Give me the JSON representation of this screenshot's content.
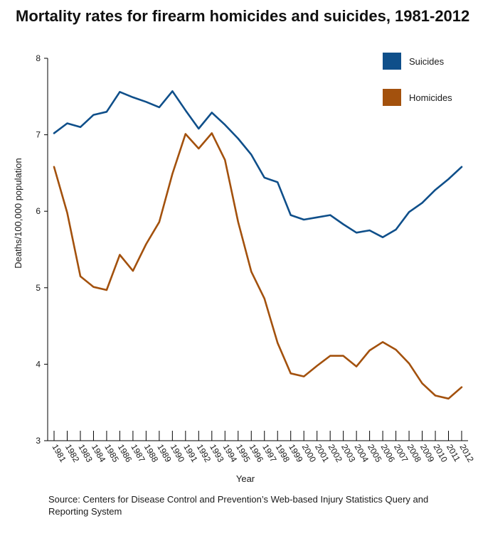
{
  "title": "Mortality rates for firearm homicides and suicides, 1981-2012",
  "source": "Source: Centers for Disease Control and Prevention’s Web-based Injury Statistics Query and Reporting System",
  "chart_data": {
    "type": "line",
    "title": "Mortality rates for firearm homicides and suicides, 1981-2012",
    "xlabel": "Year",
    "ylabel": "Deaths/100,000 population",
    "ylim": [
      3,
      8
    ],
    "yticks": [
      "3",
      "4",
      "5",
      "6",
      "7",
      "8"
    ],
    "grid": false,
    "legend_position": "top-right",
    "categories": [
      "1981",
      "1982",
      "1983",
      "1984",
      "1985",
      "1986",
      "1987",
      "1988",
      "1989",
      "1990",
      "1991",
      "1992",
      "1993",
      "1994",
      "1995",
      "1996",
      "1997",
      "1998",
      "1999",
      "2000",
      "2001",
      "2002",
      "2003",
      "2004",
      "2005",
      "2006",
      "2007",
      "2008",
      "2009",
      "2010",
      "2011",
      "2012"
    ],
    "series": [
      {
        "name": "Suicides",
        "color": "#0f4f8a",
        "values": [
          7.02,
          7.15,
          7.1,
          7.26,
          7.3,
          7.56,
          7.49,
          7.43,
          7.36,
          7.57,
          7.32,
          7.08,
          7.29,
          7.13,
          6.95,
          6.74,
          6.44,
          6.38,
          5.95,
          5.89,
          5.92,
          5.95,
          5.83,
          5.72,
          5.75,
          5.66,
          5.76,
          5.99,
          6.11,
          6.28,
          6.42,
          6.58
        ]
      },
      {
        "name": "Homicides",
        "color": "#a3510d",
        "values": [
          6.58,
          5.98,
          5.15,
          5.01,
          4.97,
          5.43,
          5.22,
          5.57,
          5.86,
          6.49,
          7.01,
          6.82,
          7.02,
          6.67,
          5.86,
          5.21,
          4.86,
          4.28,
          3.88,
          3.84,
          3.98,
          4.11,
          4.11,
          3.97,
          4.18,
          4.29,
          4.19,
          4.01,
          3.75,
          3.59,
          3.55,
          3.7
        ]
      }
    ]
  }
}
